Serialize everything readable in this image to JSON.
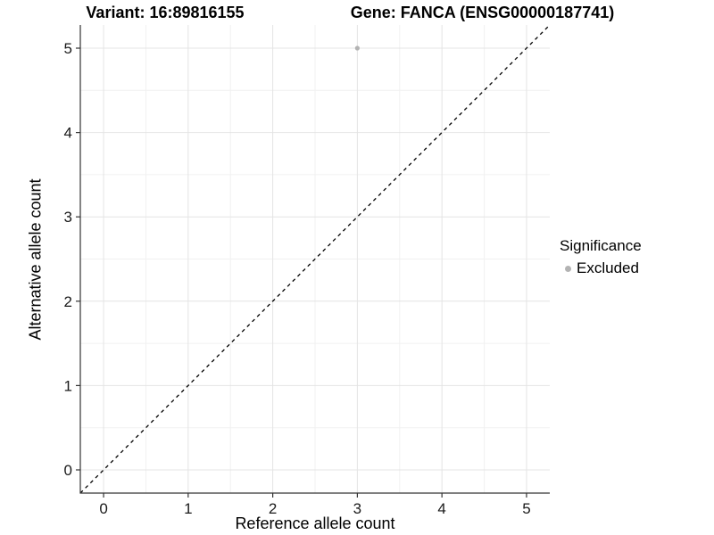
{
  "figure": {
    "background": "#ffffff"
  },
  "chart_data": {
    "type": "scatter",
    "titles": [
      "Variant: 16:89816155",
      "Gene: FANCA (ENSG00000187741)"
    ],
    "xlabel": "Reference allele count",
    "ylabel": "Alternative allele count",
    "xlim": [
      -0.275,
      5.275
    ],
    "ylim": [
      -0.275,
      5.275
    ],
    "xticks": [
      0,
      1,
      2,
      3,
      4,
      5
    ],
    "yticks": [
      0,
      1,
      2,
      3,
      4,
      5
    ],
    "minor_xticks": [
      0.5,
      1.5,
      2.5,
      3.5,
      4.5
    ],
    "minor_yticks": [
      0.5,
      1.5,
      2.5,
      3.5,
      4.5
    ],
    "grid": true,
    "series": [
      {
        "name": "Excluded",
        "color": "#b3b3b3",
        "points": [
          {
            "x": 3,
            "y": 5
          }
        ]
      }
    ],
    "reference_line": {
      "kind": "identity",
      "equation": "y = x",
      "style": "dashed",
      "color": "#000000"
    },
    "legend": {
      "title": "Significance",
      "position": "right",
      "items": [
        {
          "label": "Excluded",
          "marker": "circle",
          "color": "#b3b3b3"
        }
      ]
    }
  },
  "style": {
    "grid_major": "#e4e4e4",
    "grid_minor": "#f1f1f1",
    "axis_line": "#333333",
    "tick_text": "#1a1a1a",
    "point_color": "#b3b3b3",
    "dash_color": "#000000"
  }
}
